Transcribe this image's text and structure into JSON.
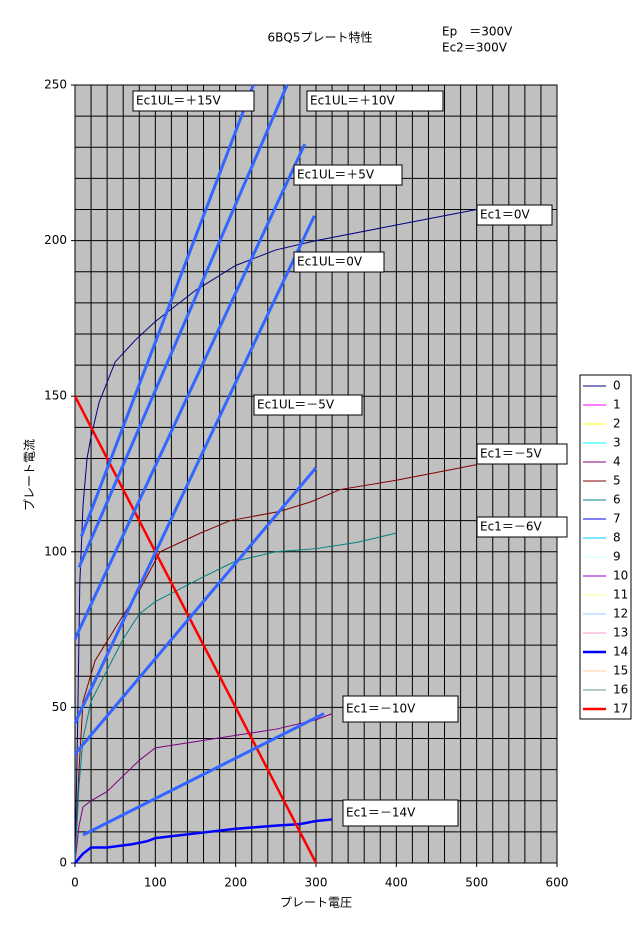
{
  "chart_data": {
    "type": "line",
    "title": "6BQ5プレート特性",
    "conditions": [
      "Ep　＝300V",
      "Ec2＝300V"
    ],
    "x_label": "プレート電圧",
    "y_label": "プレート電流",
    "xlim": [
      0,
      600
    ],
    "ylim": [
      0,
      250
    ],
    "xticks": [
      0,
      100,
      200,
      300,
      400,
      500,
      600
    ],
    "yticks": [
      0,
      50,
      100,
      150,
      200,
      250
    ],
    "xgrid": [
      20,
      40,
      60,
      80,
      100,
      120,
      140,
      160,
      180,
      200,
      220,
      240,
      260,
      280,
      300,
      320,
      340,
      360,
      380,
      400,
      420,
      440,
      460,
      480,
      500,
      520,
      540,
      560,
      580
    ],
    "ygrid": [
      10,
      20,
      30,
      40,
      50,
      60,
      70,
      80,
      90,
      100,
      110,
      120,
      130,
      140,
      150,
      160,
      170,
      180,
      190,
      200,
      210,
      220,
      230,
      240
    ],
    "grid": true,
    "legend": "right",
    "plot_background": "#c0c0c0",
    "series": [
      {
        "name": "0",
        "color": "#000080",
        "line_width": 1,
        "x": [
          0,
          3,
          6,
          10,
          15,
          20,
          30,
          50,
          75,
          100,
          150,
          200,
          250,
          300,
          400,
          500
        ],
        "values": [
          0,
          40,
          90,
          115,
          130,
          137,
          148,
          161,
          168,
          174,
          184,
          192,
          197,
          200,
          205,
          210
        ]
      },
      {
        "name": "1",
        "color": "#ff00ff",
        "line_width": 1,
        "x": [],
        "values": []
      },
      {
        "name": "2",
        "color": "#ffff00",
        "line_width": 1,
        "x": [],
        "values": []
      },
      {
        "name": "3",
        "color": "#00ffff",
        "line_width": 1,
        "x": [],
        "values": []
      },
      {
        "name": "4",
        "color": "#800080",
        "line_width": 1,
        "x": [
          0,
          5,
          10,
          20,
          40,
          60,
          80,
          100,
          150,
          200,
          250,
          300,
          320
        ],
        "values": [
          0,
          12,
          18,
          20,
          23,
          28,
          33,
          37,
          39,
          41,
          43,
          46,
          48
        ]
      },
      {
        "name": "5",
        "color": "#800000",
        "line_width": 1,
        "x": [
          0,
          5,
          10,
          25,
          56,
          81,
          106,
          156,
          193,
          255,
          293,
          330,
          400,
          500
        ],
        "values": [
          0,
          30,
          52,
          65,
          78,
          88,
          100,
          106,
          110,
          113,
          116,
          120,
          123,
          128
        ]
      },
      {
        "name": "6",
        "color": "#008080",
        "line_width": 1,
        "x": [
          0,
          5,
          10,
          20,
          40,
          60,
          80,
          100,
          130,
          160,
          200,
          250,
          300,
          350,
          400
        ],
        "values": [
          0,
          25,
          40,
          52,
          62,
          72,
          80,
          84,
          88,
          92,
          97,
          100,
          101,
          103,
          106
        ]
      },
      {
        "name": "7",
        "color": "#0000ff",
        "line_width": 1,
        "x": [],
        "values": []
      },
      {
        "name": "8",
        "color": "#00ccff",
        "line_width": 1,
        "x": [],
        "values": []
      },
      {
        "name": "9",
        "color": "#ccffff",
        "line_width": 1,
        "x": [],
        "values": []
      },
      {
        "name": "10",
        "color": "#9900cc",
        "line_width": 1,
        "x": [],
        "values": []
      },
      {
        "name": "11",
        "color": "#ffff99",
        "line_width": 1,
        "x": [],
        "values": []
      },
      {
        "name": "12",
        "color": "#99ccff",
        "line_width": 1,
        "x": [],
        "values": []
      },
      {
        "name": "13",
        "color": "#ff99cc",
        "line_width": 1,
        "x": [],
        "values": []
      },
      {
        "name": "14",
        "color": "#0000ff",
        "line_width": 2.5,
        "x": [
          0,
          10,
          20,
          40,
          70,
          90,
          100,
          150,
          200,
          250,
          280,
          300,
          320
        ],
        "values": [
          0,
          3,
          5,
          5,
          6,
          7,
          8,
          9.5,
          11,
          12,
          12.5,
          13.5,
          14
        ]
      },
      {
        "name": "15",
        "color": "#ffcc99",
        "line_width": 1,
        "x": [],
        "values": []
      },
      {
        "name": "16",
        "color": "#669999",
        "line_width": 1,
        "x": [],
        "values": []
      },
      {
        "name": "17",
        "color": "#ff0000",
        "line_width": 2.5,
        "x": [
          0,
          300
        ],
        "values": [
          150,
          0
        ]
      },
      {
        "color": "#3366ff",
        "line_width": 3,
        "x": [
          10,
          310
        ],
        "values": [
          9,
          48
        ]
      },
      {
        "color": "#3366ff",
        "line_width": 3,
        "x": [
          0,
          300
        ],
        "values": [
          35,
          127
        ]
      },
      {
        "color": "#3366ff",
        "line_width": 3,
        "x": [
          0,
          298
        ],
        "values": [
          45,
          208
        ]
      },
      {
        "color": "#3366ff",
        "line_width": 3,
        "x": [
          0,
          286
        ],
        "values": [
          72,
          231
        ]
      },
      {
        "color": "#3366ff",
        "line_width": 3,
        "x": [
          5,
          264
        ],
        "values": [
          95,
          250
        ]
      },
      {
        "color": "#3366ff",
        "line_width": 3,
        "x": [
          8,
          222
        ],
        "values": [
          105,
          250
        ]
      }
    ],
    "annotations": [
      "Ec1UL＝＋15V",
      "Ec1UL＝＋10V",
      "Ec1UL＝＋5V",
      "Ec1UL＝0V",
      "Ec1UL＝－5V",
      "Ec1＝0V",
      "Ec1＝－5V",
      "Ec1＝－6V",
      "Ec1＝－10V",
      "Ec1＝－14V"
    ]
  }
}
